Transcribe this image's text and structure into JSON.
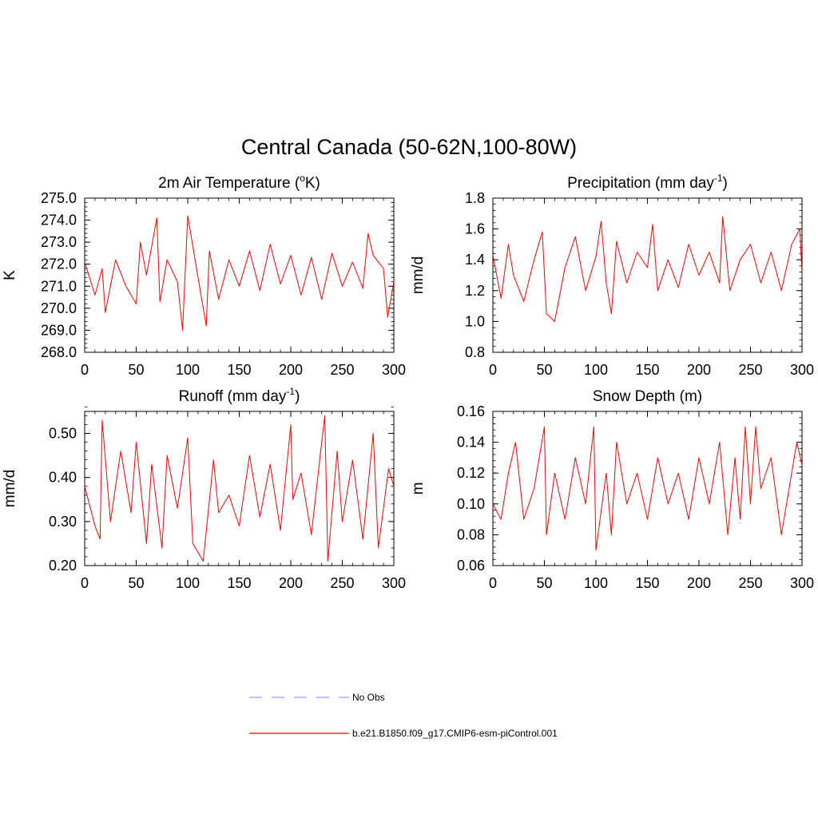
{
  "figure": {
    "title": "Central Canada (50-62N,100-80W)"
  },
  "legend": {
    "items": [
      {
        "label": "No Obs",
        "color": "#9999ff",
        "style": "dashed"
      },
      {
        "label": "b.e21.B1850.f09_g17.CMIP6-esm-piControl.001",
        "color": "#ff0000",
        "style": "solid"
      }
    ]
  },
  "chart_data": [
    {
      "type": "line",
      "title": "2m Air Temperature (oK)",
      "title_parts": {
        "pre": "2m Air Temperature (",
        "sup": "o",
        "post": "K)"
      },
      "ylabel": "K",
      "xlabel": "",
      "xlim": [
        0,
        300
      ],
      "ylim": [
        268,
        275
      ],
      "xticks": [
        0,
        50,
        100,
        150,
        200,
        250,
        300
      ],
      "xtick_labels": [
        "0",
        "50",
        "100",
        "150",
        "200",
        "250",
        "300"
      ],
      "yticks": [
        268,
        269,
        270,
        271,
        272,
        273,
        274,
        275
      ],
      "ytick_labels": [
        "268.0",
        "269.0",
        "270.0",
        "271.0",
        "272.0",
        "273.0",
        "274.0",
        "275.0"
      ],
      "series": [
        {
          "name": "b.e21.B1850.f09_g17.CMIP6-esm-piControl.001",
          "color": "#ff0000",
          "x": [
            0,
            10,
            17,
            20,
            30,
            40,
            50,
            54,
            60,
            70,
            73,
            80,
            90,
            95,
            100,
            110,
            118,
            121,
            130,
            140,
            150,
            160,
            170,
            180,
            190,
            200,
            210,
            220,
            230,
            240,
            250,
            260,
            270,
            275,
            280,
            290,
            294,
            300
          ],
          "y": [
            272.1,
            270.6,
            271.8,
            269.8,
            272.2,
            271.0,
            270.2,
            273.0,
            271.5,
            274.1,
            270.3,
            272.2,
            271.2,
            269.0,
            274.2,
            271.4,
            269.2,
            272.6,
            270.4,
            272.2,
            271.0,
            272.6,
            270.8,
            272.9,
            271.1,
            272.4,
            270.6,
            272.3,
            270.4,
            272.5,
            271.0,
            272.1,
            270.9,
            273.4,
            272.4,
            271.8,
            269.6,
            271.2
          ]
        }
      ]
    },
    {
      "type": "line",
      "title": "Precipitation (mm day-1)",
      "title_parts": {
        "pre": "Precipitation (mm day",
        "sup": "-1",
        "post": ")"
      },
      "ylabel": "mm/d",
      "xlabel": "",
      "xlim": [
        0,
        300
      ],
      "ylim": [
        0.8,
        1.8
      ],
      "xticks": [
        0,
        50,
        100,
        150,
        200,
        250,
        300
      ],
      "xtick_labels": [
        "0",
        "50",
        "100",
        "150",
        "200",
        "250",
        "300"
      ],
      "yticks": [
        0.8,
        1.0,
        1.2,
        1.4,
        1.6,
        1.8
      ],
      "ytick_labels": [
        "0.8",
        "1.0",
        "1.2",
        "1.4",
        "1.6",
        "1.8"
      ],
      "series": [
        {
          "name": "b.e21.B1850.f09_g17.CMIP6-esm-piControl.001",
          "color": "#ff0000",
          "x": [
            0,
            8,
            15,
            20,
            30,
            40,
            48,
            52,
            60,
            70,
            80,
            90,
            100,
            105,
            110,
            115,
            120,
            130,
            140,
            150,
            155,
            160,
            170,
            180,
            190,
            200,
            210,
            220,
            223,
            230,
            240,
            250,
            260,
            270,
            280,
            290,
            298,
            300
          ],
          "y": [
            1.43,
            1.15,
            1.5,
            1.3,
            1.13,
            1.4,
            1.58,
            1.05,
            1.0,
            1.35,
            1.55,
            1.2,
            1.42,
            1.65,
            1.25,
            1.05,
            1.52,
            1.25,
            1.45,
            1.35,
            1.63,
            1.2,
            1.4,
            1.22,
            1.5,
            1.3,
            1.45,
            1.25,
            1.68,
            1.2,
            1.4,
            1.5,
            1.25,
            1.45,
            1.2,
            1.5,
            1.6,
            1.3
          ]
        }
      ]
    },
    {
      "type": "line",
      "title": "Runoff (mm day-1)",
      "title_parts": {
        "pre": "Runoff (mm day",
        "sup": "-1",
        "post": ")"
      },
      "ylabel": "mm/d",
      "xlabel": "",
      "xlim": [
        0,
        300
      ],
      "ylim": [
        0.2,
        0.55
      ],
      "xticks": [
        0,
        50,
        100,
        150,
        200,
        250,
        300
      ],
      "xtick_labels": [
        "0",
        "50",
        "100",
        "150",
        "200",
        "250",
        "300"
      ],
      "yticks": [
        0.2,
        0.3,
        0.4,
        0.5
      ],
      "ytick_labels": [
        "0.20",
        "0.30",
        "0.40",
        "0.50"
      ],
      "series": [
        {
          "name": "b.e21.B1850.f09_g17.CMIP6-esm-piControl.001",
          "color": "#ff0000",
          "x": [
            0,
            10,
            15,
            17,
            25,
            35,
            45,
            50,
            60,
            65,
            75,
            80,
            90,
            100,
            105,
            115,
            125,
            130,
            140,
            150,
            160,
            170,
            180,
            190,
            200,
            202,
            210,
            220,
            230,
            233,
            236,
            245,
            250,
            260,
            270,
            280,
            285,
            295,
            300
          ],
          "y": [
            0.38,
            0.29,
            0.26,
            0.53,
            0.3,
            0.46,
            0.32,
            0.48,
            0.25,
            0.43,
            0.24,
            0.45,
            0.33,
            0.49,
            0.25,
            0.21,
            0.44,
            0.32,
            0.36,
            0.29,
            0.45,
            0.31,
            0.43,
            0.28,
            0.52,
            0.35,
            0.41,
            0.27,
            0.48,
            0.54,
            0.21,
            0.46,
            0.3,
            0.44,
            0.26,
            0.5,
            0.24,
            0.42,
            0.38
          ]
        }
      ]
    },
    {
      "type": "line",
      "title": "Snow Depth (m)",
      "title_parts": {
        "pre": "Snow Depth (m)",
        "sup": "",
        "post": ""
      },
      "ylabel": "m",
      "xlabel": "",
      "xlim": [
        0,
        300
      ],
      "ylim": [
        0.06,
        0.16
      ],
      "xticks": [
        0,
        50,
        100,
        150,
        200,
        250,
        300
      ],
      "xtick_labels": [
        "0",
        "50",
        "100",
        "150",
        "200",
        "250",
        "300"
      ],
      "yticks": [
        0.06,
        0.08,
        0.1,
        0.12,
        0.14,
        0.16
      ],
      "ytick_labels": [
        "0.06",
        "0.08",
        "0.10",
        "0.12",
        "0.14",
        "0.16"
      ],
      "series": [
        {
          "name": "b.e21.B1850.f09_g17.CMIP6-esm-piControl.001",
          "color": "#ff0000",
          "x": [
            0,
            8,
            15,
            22,
            30,
            40,
            50,
            52,
            60,
            70,
            80,
            90,
            98,
            100,
            110,
            115,
            120,
            130,
            140,
            150,
            160,
            170,
            180,
            190,
            200,
            210,
            220,
            228,
            235,
            240,
            245,
            250,
            255,
            260,
            270,
            280,
            290,
            295,
            300
          ],
          "y": [
            0.1,
            0.09,
            0.12,
            0.14,
            0.09,
            0.11,
            0.15,
            0.08,
            0.12,
            0.09,
            0.13,
            0.1,
            0.15,
            0.07,
            0.12,
            0.08,
            0.14,
            0.1,
            0.12,
            0.09,
            0.13,
            0.1,
            0.12,
            0.09,
            0.13,
            0.1,
            0.14,
            0.08,
            0.13,
            0.09,
            0.15,
            0.1,
            0.15,
            0.11,
            0.13,
            0.08,
            0.12,
            0.14,
            0.125
          ]
        }
      ]
    }
  ]
}
